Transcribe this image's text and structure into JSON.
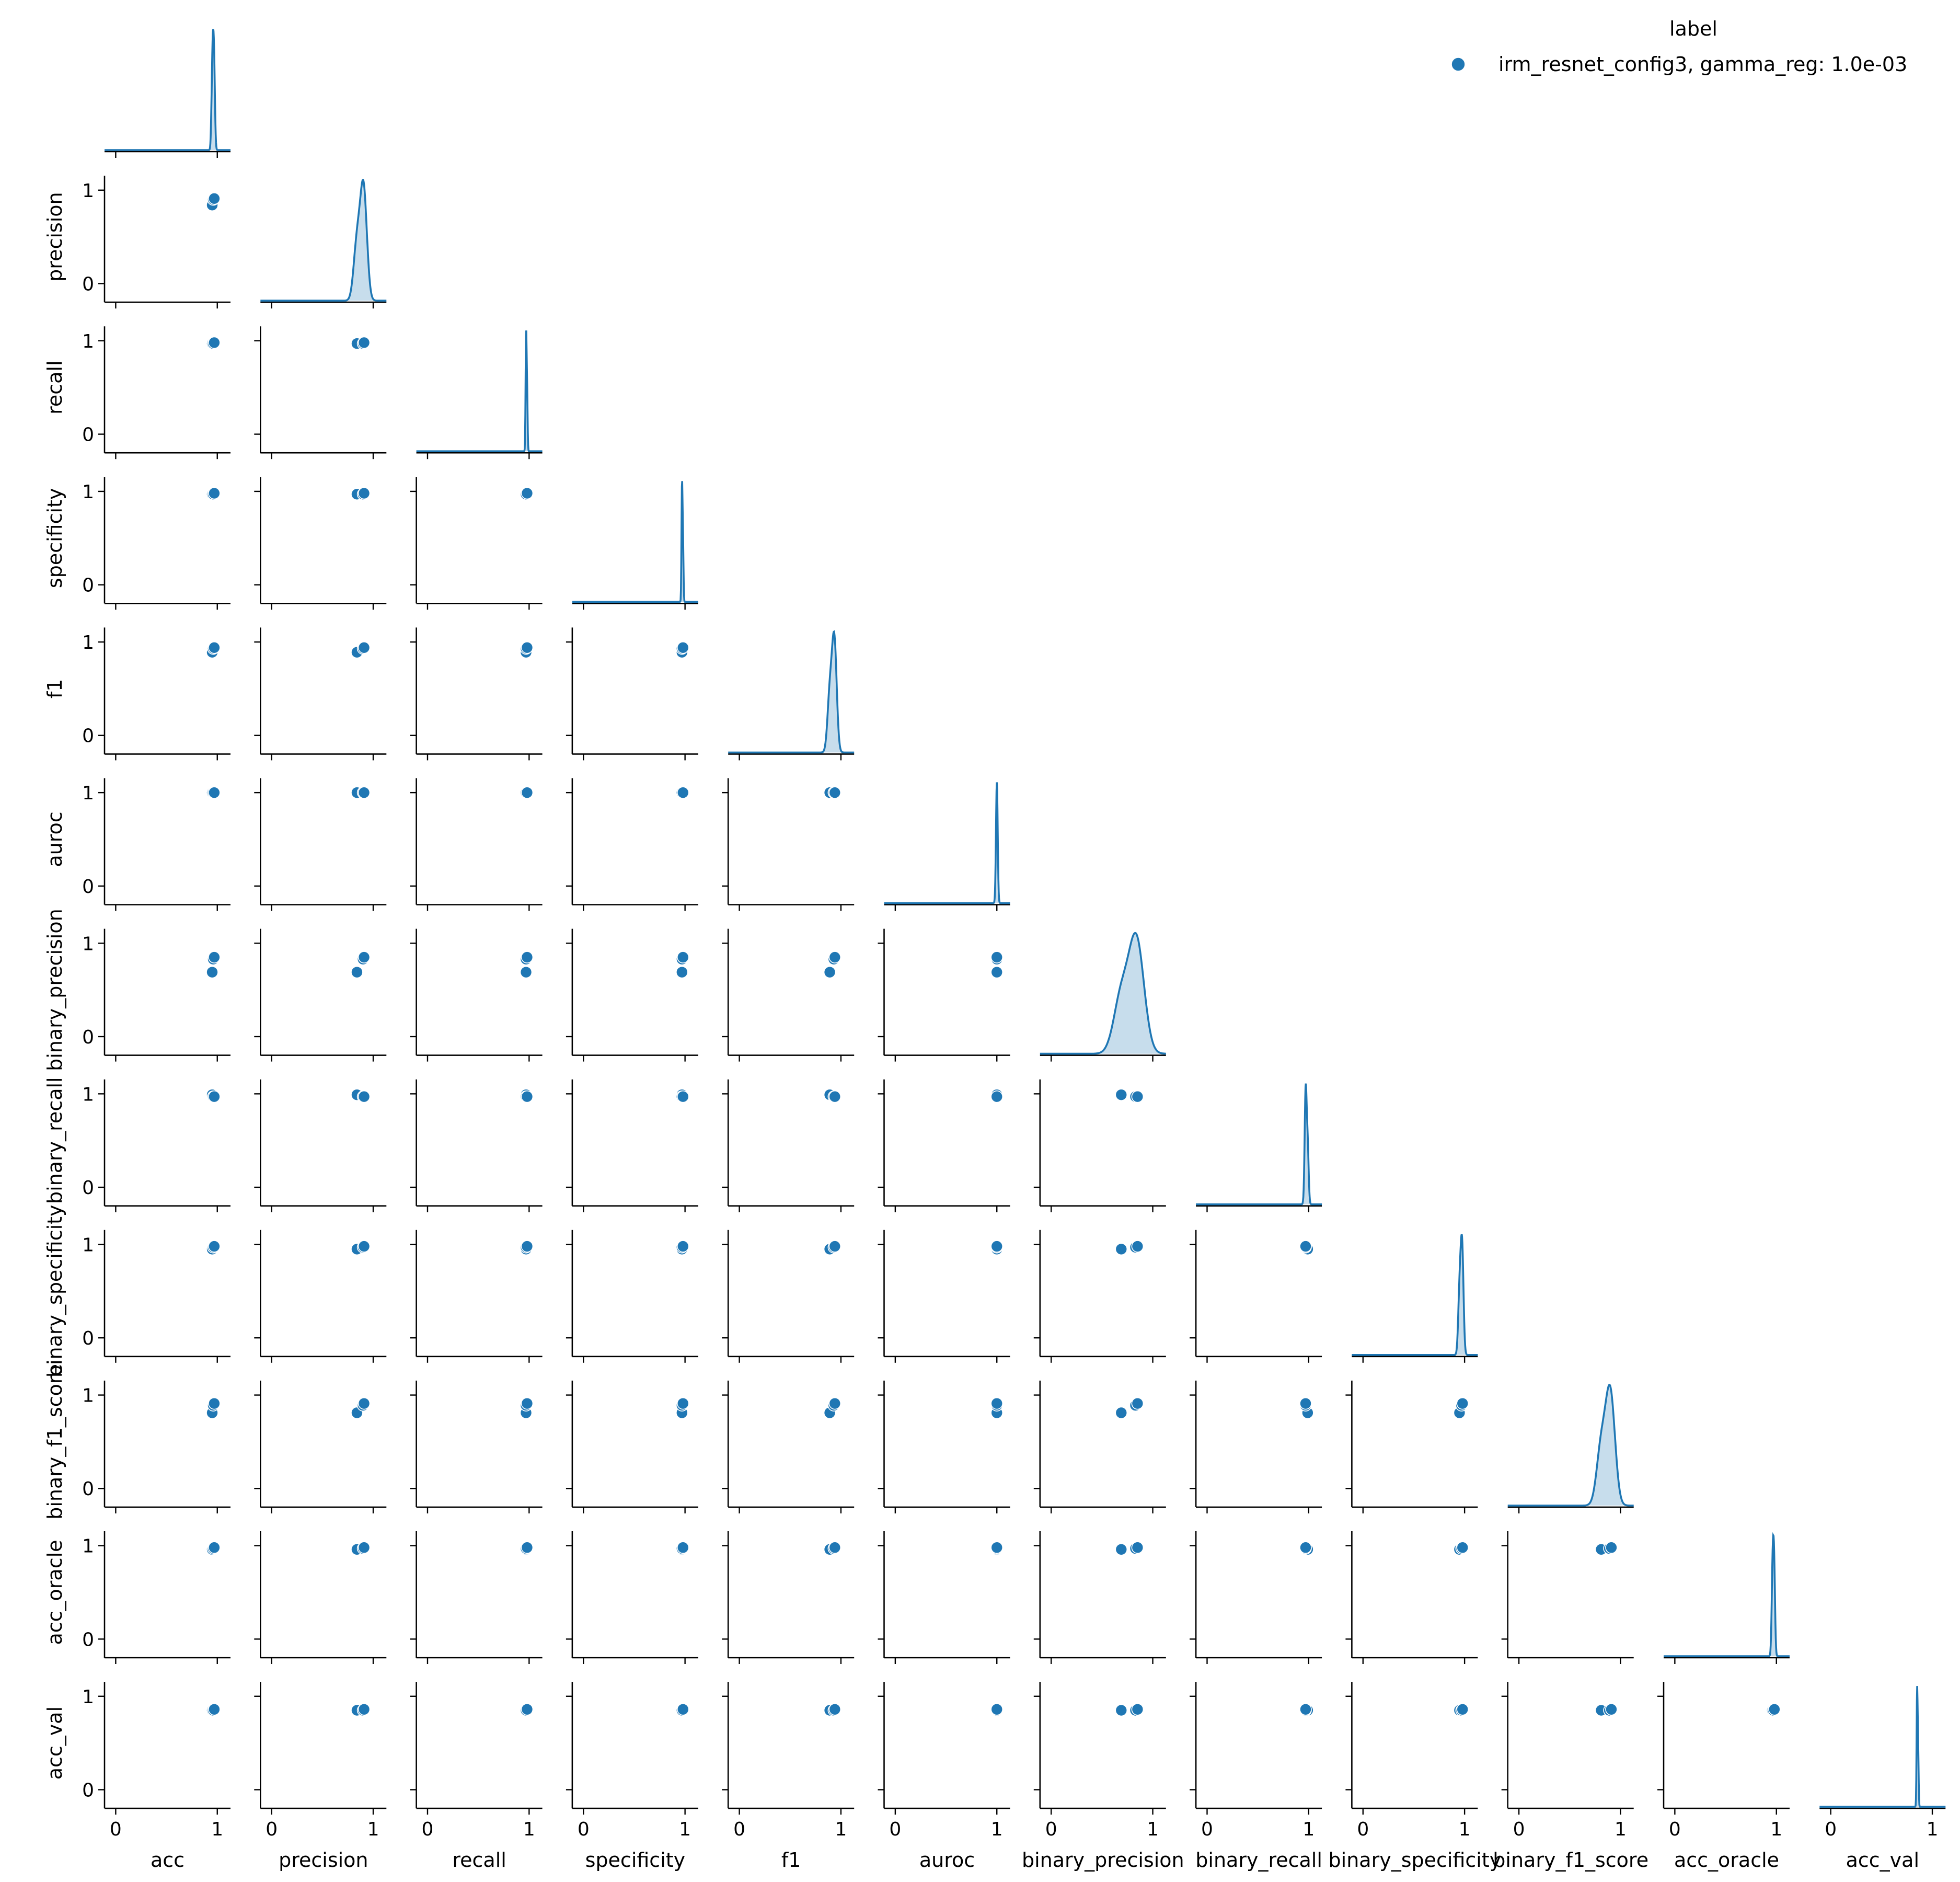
{
  "chart_data": {
    "type": "pairplot",
    "variables": [
      "acc",
      "precision",
      "recall",
      "specificity",
      "f1",
      "auroc",
      "binary_precision",
      "binary_recall",
      "binary_specificity",
      "binary_f1_score",
      "acc_oracle",
      "acc_val"
    ],
    "axis_range": [
      0,
      1
    ],
    "ticks": [
      0,
      1
    ],
    "tick_labels": [
      "0",
      "1"
    ],
    "corner": true,
    "diagonal": "kde",
    "offdiagonal": "scatter",
    "legend": {
      "title": "label",
      "entries": [
        "irm_resnet_config3, gamma_reg: 1.0e-03"
      ],
      "placement": "top-right"
    },
    "color": "#1f77b4",
    "series": [
      {
        "name": "irm_resnet_config3, gamma_reg: 1.0e-03",
        "points": [
          {
            "acc": 0.95,
            "precision": 0.84,
            "recall": 0.97,
            "specificity": 0.97,
            "f1": 0.89,
            "auroc": 1.0,
            "binary_precision": 0.69,
            "binary_recall": 0.99,
            "binary_specificity": 0.95,
            "binary_f1_score": 0.81,
            "acc_oracle": 0.96,
            "acc_val": 0.85
          },
          {
            "acc": 0.96,
            "precision": 0.9,
            "recall": 0.97,
            "specificity": 0.97,
            "f1": 0.93,
            "auroc": 1.0,
            "binary_precision": 0.83,
            "binary_recall": 0.97,
            "binary_specificity": 0.97,
            "binary_f1_score": 0.89,
            "acc_oracle": 0.97,
            "acc_val": 0.85
          },
          {
            "acc": 0.97,
            "precision": 0.91,
            "recall": 0.98,
            "specificity": 0.98,
            "f1": 0.94,
            "auroc": 1.0,
            "binary_precision": 0.85,
            "binary_recall": 0.97,
            "binary_specificity": 0.98,
            "binary_f1_score": 0.91,
            "acc_oracle": 0.98,
            "acc_val": 0.86
          }
        ]
      }
    ]
  }
}
